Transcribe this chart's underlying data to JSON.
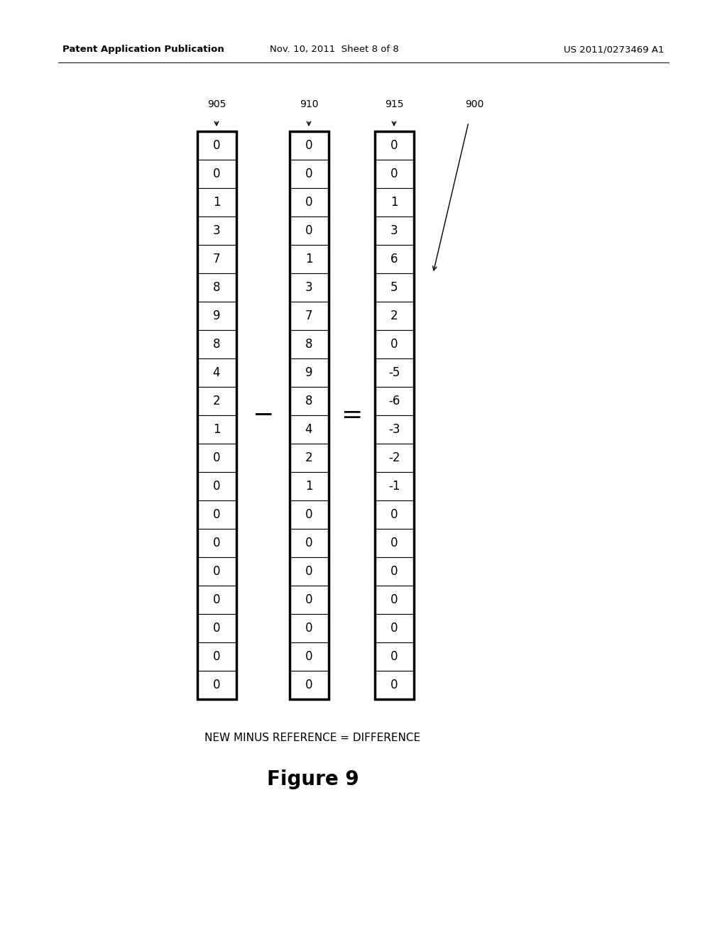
{
  "col1_label": "905",
  "col2_label": "910",
  "col3_label": "915",
  "group_label": "900",
  "col1_values": [
    "0",
    "0",
    "1",
    "3",
    "7",
    "8",
    "9",
    "8",
    "4",
    "2",
    "1",
    "0",
    "0",
    "0",
    "0",
    "0",
    "0",
    "0",
    "0",
    "0"
  ],
  "col2_values": [
    "0",
    "0",
    "0",
    "0",
    "1",
    "3",
    "7",
    "8",
    "9",
    "8",
    "4",
    "2",
    "1",
    "0",
    "0",
    "0",
    "0",
    "0",
    "0",
    "0"
  ],
  "col3_values": [
    "0",
    "0",
    "1",
    "3",
    "6",
    "5",
    "2",
    "0",
    "-5",
    "-6",
    "-3",
    "-2",
    "-1",
    "0",
    "0",
    "0",
    "0",
    "0",
    "0",
    "0"
  ],
  "header_left": "Patent Application Publication",
  "header_mid": "Nov. 10, 2011  Sheet 8 of 8",
  "header_right": "US 2011/0273469 A1",
  "caption": "NEW MINUS REFERENCE = DIFFERENCE",
  "figure_label": "Figure 9",
  "minus_symbol": "−",
  "equals_symbol": "=",
  "bg_color": "#ffffff",
  "text_color": "#000000"
}
